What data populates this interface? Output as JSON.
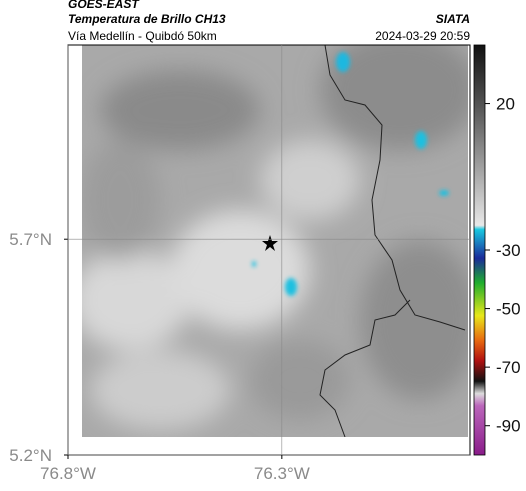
{
  "header": {
    "source": "GOES-EAST",
    "title": "Temperatura de Brillo CH13",
    "subtitle": "Vía Medellín - Quibdó 50km",
    "org": "SIATA",
    "datetime": "2024-03-29 20:59"
  },
  "map": {
    "latlim": [
      5.2,
      6.15
    ],
    "lonlim": [
      -76.8,
      -75.86
    ],
    "lat_ticks": [
      {
        "value": 5.2,
        "label": "5.2°N"
      },
      {
        "value": 5.7,
        "label": "5.7°N"
      }
    ],
    "lon_ticks": [
      {
        "value": -76.8,
        "label": "76.8°W"
      },
      {
        "value": -76.3,
        "label": "76.3°W"
      }
    ],
    "grid": true
  },
  "colorbar": {
    "lim": [
      -100,
      40
    ],
    "ticks": [
      20,
      -30,
      -50,
      -70,
      -90
    ]
  }
}
